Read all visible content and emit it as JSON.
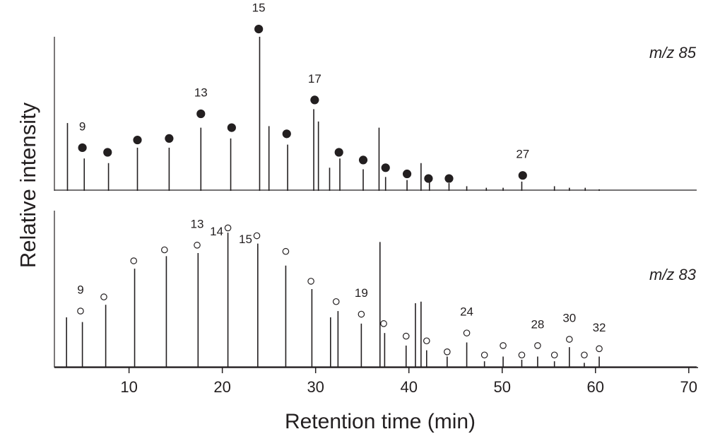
{
  "chart_data": {
    "type": "peaks",
    "xlabel": "Retention time (min)",
    "ylabel": "Relative  intensity",
    "xlim": [
      2,
      71
    ],
    "xticks": [
      10,
      20,
      30,
      40,
      50,
      60,
      70
    ],
    "panels": [
      {
        "label": "m/z 85",
        "color": "#231f20",
        "marker": "filled",
        "ylim": [
          0,
          100
        ],
        "x": [
          3.4,
          5.2,
          7.8,
          10.9,
          14.3,
          17.7,
          20.9,
          24.0,
          25.0,
          27.0,
          29.8,
          30.3,
          31.5,
          32.6,
          35.1,
          36.8,
          37.5,
          39.8,
          41.3,
          42.2,
          44.3,
          46.2,
          48.3,
          50.1,
          52.1,
          55.6,
          57.2,
          58.9,
          60.4
        ],
        "values": [
          44,
          21,
          18,
          28,
          28,
          41,
          34,
          100,
          42,
          30,
          53,
          45,
          15,
          21,
          14,
          41,
          9,
          7,
          18,
          6,
          5,
          3,
          2,
          2,
          6,
          3,
          2,
          2,
          1
        ],
        "markers": [
          {
            "x": 5.0,
            "y": 28,
            "label": "9"
          },
          {
            "x": 7.7,
            "y": 25
          },
          {
            "x": 10.9,
            "y": 33
          },
          {
            "x": 14.3,
            "y": 34
          },
          {
            "x": 17.7,
            "y": 50,
            "label": "13"
          },
          {
            "x": 21.0,
            "y": 41
          },
          {
            "x": 23.9,
            "y": 105,
            "label": "15"
          },
          {
            "x": 26.9,
            "y": 37
          },
          {
            "x": 29.9,
            "y": 59,
            "label": "17"
          },
          {
            "x": 32.5,
            "y": 25
          },
          {
            "x": 35.1,
            "y": 20
          },
          {
            "x": 37.5,
            "y": 15
          },
          {
            "x": 39.8,
            "y": 11
          },
          {
            "x": 42.1,
            "y": 8
          },
          {
            "x": 44.3,
            "y": 8
          },
          {
            "x": 52.2,
            "y": 10,
            "label": "27"
          }
        ]
      },
      {
        "label": "m/z 83",
        "color": "#231f20",
        "marker": "open",
        "ylim": [
          0,
          100
        ],
        "x": [
          3.3,
          5.0,
          7.5,
          10.6,
          14.0,
          17.4,
          20.6,
          23.8,
          26.8,
          29.6,
          31.6,
          32.4,
          34.9,
          36.9,
          37.4,
          39.7,
          40.7,
          41.3,
          41.9,
          44.1,
          46.2,
          48.1,
          50.1,
          52.1,
          53.8,
          55.6,
          57.2,
          58.8,
          60.4
        ],
        "values": [
          32,
          29,
          40,
          63,
          71,
          73,
          86,
          79,
          65,
          50,
          32,
          36,
          28,
          80,
          22,
          14,
          41,
          42,
          11,
          7,
          16,
          4,
          7,
          5,
          7,
          4,
          13,
          3,
          7
        ],
        "markers": [
          {
            "x": 4.8,
            "y": 36,
            "label": "9"
          },
          {
            "x": 7.3,
            "y": 45
          },
          {
            "x": 10.5,
            "y": 68
          },
          {
            "x": 13.8,
            "y": 75
          },
          {
            "x": 17.3,
            "y": 78,
            "label": "13"
          },
          {
            "x": 20.6,
            "y": 89,
            "label": "14"
          },
          {
            "x": 23.7,
            "y": 84,
            "label": "15"
          },
          {
            "x": 26.8,
            "y": 74
          },
          {
            "x": 29.5,
            "y": 55
          },
          {
            "x": 32.2,
            "y": 42
          },
          {
            "x": 34.9,
            "y": 34,
            "label": "19"
          },
          {
            "x": 37.3,
            "y": 28
          },
          {
            "x": 39.7,
            "y": 20
          },
          {
            "x": 41.9,
            "y": 17
          },
          {
            "x": 44.1,
            "y": 10
          },
          {
            "x": 46.2,
            "y": 22,
            "label": "24"
          },
          {
            "x": 48.1,
            "y": 8
          },
          {
            "x": 50.1,
            "y": 14
          },
          {
            "x": 52.1,
            "y": 8
          },
          {
            "x": 53.8,
            "y": 14,
            "label": "28"
          },
          {
            "x": 55.6,
            "y": 8
          },
          {
            "x": 57.2,
            "y": 18,
            "label": "30"
          },
          {
            "x": 58.8,
            "y": 8
          },
          {
            "x": 60.4,
            "y": 12,
            "label": "32"
          }
        ]
      }
    ]
  }
}
